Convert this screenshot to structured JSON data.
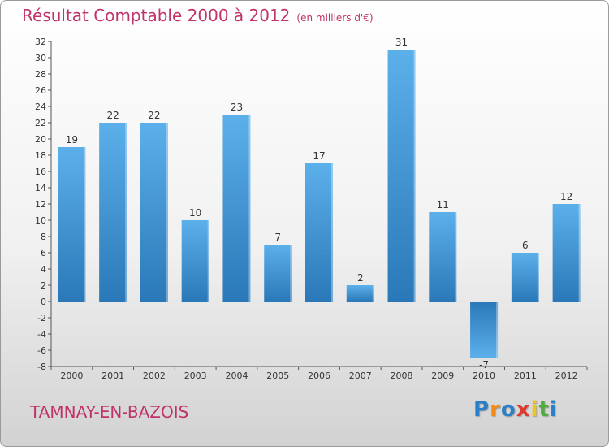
{
  "chart_data": {
    "type": "bar",
    "title": "Résultat Comptable 2000 à 2012",
    "subtitle": "(en milliers d'€)",
    "categories": [
      "2000",
      "2001",
      "2002",
      "2003",
      "2004",
      "2005",
      "2006",
      "2007",
      "2008",
      "2009",
      "2010",
      "2011",
      "2012"
    ],
    "values": [
      19,
      22,
      22,
      10,
      23,
      7,
      17,
      2,
      31,
      11,
      -7,
      6,
      12
    ],
    "ylim": [
      -8,
      32
    ],
    "yticks": [
      32,
      30,
      28,
      26,
      24,
      22,
      20,
      18,
      16,
      14,
      12,
      10,
      8,
      6,
      4,
      2,
      0,
      -2,
      -4,
      -6,
      -8
    ],
    "grid": false,
    "xlabel": "",
    "ylabel": ""
  },
  "commune": "TAMNAY-EN-BAZOIS",
  "logo": {
    "letters": [
      "P",
      "r",
      "o",
      "x",
      "i",
      "t",
      "i"
    ],
    "colors": [
      "#2a7fc6",
      "#f08a1c",
      "#2a7fc6",
      "#e03a2f",
      "#f0c419",
      "#4fae3b",
      "#2a7fc6"
    ]
  },
  "colors": {
    "bar_light": "#5aaee8",
    "bar_dark": "#2a78b8",
    "accent": "#c0336a"
  }
}
